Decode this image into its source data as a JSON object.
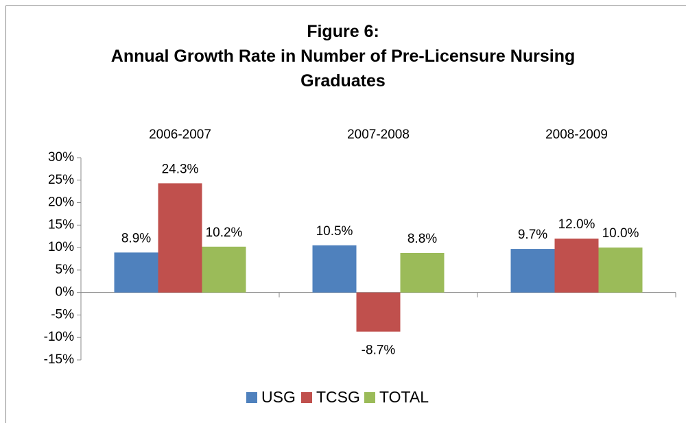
{
  "chart_data": {
    "type": "bar",
    "title": "Figure 6:",
    "subtitle": "Annual Growth Rate in Number of Pre-Licensure Nursing Graduates",
    "categories": [
      "2006-2007",
      "2007-2008",
      "2008-2009"
    ],
    "series": [
      {
        "name": "USG",
        "color": "#4f81bd",
        "values": [
          8.9,
          10.5,
          9.7
        ],
        "value_labels": [
          "8.9%",
          "10.5%",
          "9.7%"
        ]
      },
      {
        "name": "TCSG",
        "color": "#c0504d",
        "values": [
          24.3,
          -8.7,
          12.0
        ],
        "value_labels": [
          "24.3%",
          "-8.7%",
          "12.0%"
        ]
      },
      {
        "name": "TOTAL",
        "color": "#9bbb59",
        "values": [
          10.2,
          8.8,
          10.0
        ],
        "value_labels": [
          "10.2%",
          "8.8%",
          "10.0%"
        ]
      }
    ],
    "ylim": [
      -15,
      30
    ],
    "yticks": [
      {
        "value": -15,
        "label": "-15%"
      },
      {
        "value": -10,
        "label": "-10%"
      },
      {
        "value": -5,
        "label": "-5%"
      },
      {
        "value": 0,
        "label": "0%"
      },
      {
        "value": 5,
        "label": "5%"
      },
      {
        "value": 10,
        "label": "10%"
      },
      {
        "value": 15,
        "label": "15%"
      },
      {
        "value": 20,
        "label": "20%"
      },
      {
        "value": 25,
        "label": "25%"
      },
      {
        "value": 30,
        "label": "30%"
      }
    ],
    "legend": "bottom"
  }
}
